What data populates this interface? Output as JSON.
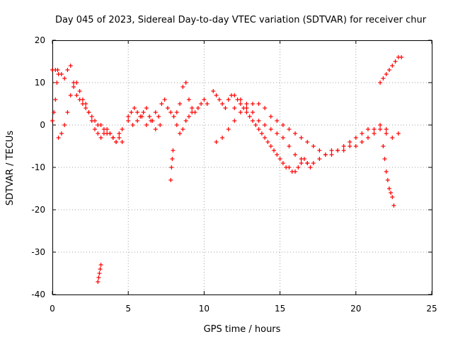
{
  "chart_data": {
    "type": "scatter",
    "title": "Day 045 of 2023, Sidereal Day-to-day VTEC variation (SDTVAR) for receiver chur",
    "xlabel": "GPS time / hours",
    "ylabel": "SDTVAR / TECUs",
    "xlim": [
      0,
      25
    ],
    "ylim": [
      -40,
      20
    ],
    "xticks": [
      "0",
      "5",
      "10",
      "15",
      "20",
      "25"
    ],
    "yticks": [
      "-40",
      "-30",
      "-20",
      "-10",
      "0",
      "10",
      "20"
    ],
    "grid": true,
    "marker": "+",
    "series": [
      {
        "name": "SDTVAR",
        "color": "#ff0000",
        "x": [
          0.0,
          0.2,
          0.4,
          0.6,
          0.8,
          1.0,
          1.2,
          1.4,
          1.6,
          1.8,
          2.0,
          2.2,
          2.4,
          2.6,
          2.8,
          3.0,
          3.2,
          3.4,
          3.6,
          3.8,
          4.0,
          4.2,
          4.4,
          4.6,
          0.0,
          0.1,
          0.2,
          0.3,
          0.35,
          0.4,
          0.6,
          0.8,
          1.0,
          1.2,
          1.4,
          1.6,
          1.8,
          2.0,
          2.2,
          2.4,
          2.6,
          2.8,
          3.0,
          3.2,
          3.4,
          3.6,
          3.8,
          4.0,
          4.2,
          4.4,
          4.6,
          3.0,
          3.05,
          3.1,
          3.15,
          3.2,
          5.0,
          5.2,
          5.4,
          5.6,
          5.8,
          6.0,
          6.2,
          6.4,
          6.6,
          6.8,
          7.0,
          5.0,
          5.3,
          5.6,
          5.9,
          6.2,
          6.5,
          6.8,
          7.1,
          7.8,
          7.85,
          7.9,
          7.95,
          7.2,
          7.4,
          7.6,
          7.8,
          8.0,
          8.2,
          8.4,
          8.6,
          8.8,
          9.0,
          9.2,
          9.4,
          9.6,
          9.8,
          10.0,
          10.2,
          8.2,
          8.4,
          8.6,
          8.8,
          9.0,
          9.2,
          10.6,
          10.8,
          11.0,
          11.2,
          11.4,
          11.6,
          11.8,
          12.0,
          12.2,
          12.4,
          12.6,
          12.8,
          13.0,
          13.2,
          13.4,
          13.6,
          13.8,
          14.0,
          14.2,
          14.4,
          14.6,
          14.8,
          15.0,
          15.2,
          15.4,
          15.6,
          15.8,
          16.0,
          16.2,
          16.4,
          16.6,
          16.8,
          17.0,
          10.8,
          11.2,
          11.6,
          12.0,
          12.4,
          12.8,
          13.2,
          13.6,
          14.0,
          14.4,
          14.8,
          15.2,
          15.6,
          16.0,
          16.4,
          16.8,
          17.2,
          17.6,
          18.0,
          18.4,
          18.8,
          19.2,
          19.6,
          20.0,
          20.4,
          20.8,
          21.2,
          21.6,
          22.0,
          22.4,
          22.8,
          12.0,
          12.4,
          12.8,
          13.2,
          13.6,
          14.0,
          14.4,
          14.8,
          15.2,
          15.6,
          16.0,
          16.4,
          16.8,
          17.2,
          17.6,
          18.0,
          18.4,
          18.8,
          19.2,
          19.6,
          20.0,
          20.4,
          20.8,
          21.2,
          21.6,
          22.0,
          21.8,
          21.9,
          22.0,
          22.1,
          22.2,
          22.3,
          22.4,
          22.5,
          21.6,
          21.8,
          22.0,
          22.2,
          22.4,
          22.6,
          22.8,
          23.0
        ],
        "y": [
          13,
          13,
          12,
          12,
          11,
          13,
          14,
          10,
          7,
          6,
          5,
          4,
          3,
          2,
          1,
          0,
          0,
          -1,
          -2,
          -2,
          -3,
          -4,
          -3,
          -4,
          1,
          3,
          6,
          10,
          13,
          -3,
          -2,
          0,
          3,
          7,
          9,
          10,
          8,
          6,
          5,
          3,
          1,
          -1,
          -2,
          -3,
          -2,
          -1,
          -2,
          -3,
          -4,
          -2,
          -1,
          -37,
          -36,
          -35,
          -34,
          -33,
          2,
          3,
          4,
          3,
          2,
          3,
          4,
          2,
          1,
          3,
          2,
          1,
          0,
          1,
          2,
          0,
          1,
          -1,
          0,
          -13,
          -10,
          -8,
          -6,
          5,
          6,
          4,
          3,
          2,
          3,
          5,
          9,
          10,
          6,
          4,
          3,
          4,
          5,
          6,
          5,
          0,
          -2,
          -1,
          1,
          2,
          3,
          8,
          7,
          6,
          5,
          4,
          6,
          7,
          7,
          6,
          5,
          4,
          3,
          2,
          1,
          0,
          -1,
          -2,
          -3,
          -4,
          -5,
          -6,
          -7,
          -8,
          -9,
          -10,
          -10,
          -11,
          -11,
          -10,
          -9,
          -8,
          -9,
          -10,
          -4,
          -3,
          -1,
          1,
          3,
          4,
          5,
          5,
          4,
          2,
          1,
          0,
          -1,
          -2,
          -3,
          -4,
          -5,
          -6,
          -7,
          -7,
          -6,
          -6,
          -5,
          -5,
          -4,
          -3,
          -2,
          -1,
          -2,
          -3,
          -2,
          4,
          6,
          5,
          3,
          1,
          0,
          -1,
          -2,
          -3,
          -5,
          -7,
          -8,
          -9,
          -9,
          -8,
          -7,
          -6,
          -6,
          -5,
          -4,
          -3,
          -2,
          -1,
          -1,
          0,
          -1,
          -5,
          -8,
          -11,
          -13,
          -15,
          -16,
          -17,
          -19,
          10,
          11,
          12,
          13,
          14,
          15,
          16,
          16
        ]
      }
    ]
  }
}
